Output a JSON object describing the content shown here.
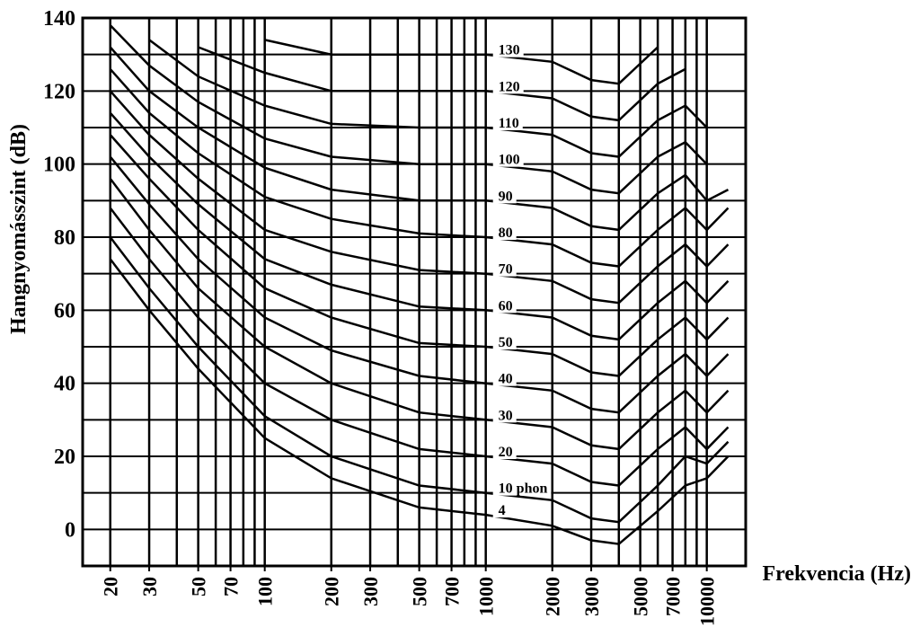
{
  "chart_data": {
    "type": "line",
    "x_label": "Frekvencia (Hz)",
    "y_label": "Hangnyomásszint (dB)",
    "log_x": true,
    "grid": true,
    "xlim": [
      15,
      15000
    ],
    "ylim": [
      -10,
      140
    ],
    "xticks": [
      20,
      30,
      50,
      70,
      100,
      200,
      300,
      500,
      700,
      1000,
      2000,
      3000,
      5000,
      7000,
      10000
    ],
    "yticks": [
      0,
      20,
      40,
      60,
      80,
      100,
      120,
      140
    ],
    "xgrid": [
      20,
      30,
      40,
      50,
      60,
      70,
      80,
      90,
      100,
      200,
      300,
      400,
      500,
      600,
      700,
      800,
      900,
      1000,
      2000,
      3000,
      4000,
      5000,
      6000,
      7000,
      8000,
      9000,
      10000
    ],
    "ygrid": [
      -10,
      0,
      10,
      20,
      30,
      40,
      50,
      60,
      70,
      80,
      90,
      100,
      110,
      120,
      130,
      140
    ],
    "x": [
      20,
      30,
      50,
      100,
      200,
      500,
      1000,
      2000,
      3000,
      4000,
      6000,
      8000,
      10000,
      12500
    ],
    "series": [
      {
        "name": "130",
        "color": "#000000",
        "values": [
          null,
          null,
          null,
          134,
          130,
          130,
          130,
          128,
          123,
          122,
          132,
          null,
          null,
          null
        ]
      },
      {
        "name": "120",
        "color": "#000000",
        "values": [
          null,
          null,
          132,
          125,
          120,
          120,
          120,
          118,
          113,
          112,
          122,
          126,
          null,
          null
        ]
      },
      {
        "name": "110",
        "color": "#000000",
        "values": [
          null,
          134,
          124,
          116,
          111,
          110,
          110,
          108,
          103,
          102,
          112,
          116,
          110,
          null
        ]
      },
      {
        "name": "100",
        "color": "#000000",
        "values": [
          138,
          127,
          117,
          107,
          102,
          100,
          100,
          98,
          93,
          92,
          102,
          106,
          100,
          null
        ]
      },
      {
        "name": "90",
        "color": "#000000",
        "values": [
          132,
          120,
          110,
          99,
          93,
          90,
          90,
          88,
          83,
          82,
          92,
          97,
          90,
          93
        ]
      },
      {
        "name": "80",
        "color": "#000000",
        "values": [
          126,
          114,
          103,
          91,
          85,
          81,
          80,
          78,
          73,
          72,
          82,
          88,
          82,
          88
        ]
      },
      {
        "name": "70",
        "color": "#000000",
        "values": [
          120,
          108,
          96,
          82,
          76,
          71,
          70,
          68,
          63,
          62,
          72,
          78,
          72,
          78
        ]
      },
      {
        "name": "60",
        "color": "#000000",
        "values": [
          114,
          102,
          89,
          74,
          67,
          61,
          60,
          58,
          53,
          52,
          62,
          68,
          62,
          68
        ]
      },
      {
        "name": "50",
        "color": "#000000",
        "values": [
          108,
          96,
          82,
          66,
          58,
          51,
          50,
          48,
          43,
          42,
          52,
          58,
          52,
          58
        ]
      },
      {
        "name": "40",
        "color": "#000000",
        "values": [
          102,
          89,
          74,
          58,
          49,
          42,
          40,
          38,
          33,
          32,
          42,
          48,
          42,
          48
        ]
      },
      {
        "name": "30",
        "color": "#000000",
        "values": [
          96,
          82,
          66,
          50,
          40,
          32,
          30,
          28,
          23,
          22,
          32,
          38,
          32,
          38
        ]
      },
      {
        "name": "20",
        "color": "#000000",
        "values": [
          88,
          74,
          58,
          40,
          30,
          22,
          20,
          18,
          13,
          12,
          22,
          28,
          22,
          28
        ]
      },
      {
        "name": "10 phon",
        "color": "#000000",
        "values": [
          80,
          66,
          50,
          31,
          20,
          12,
          10,
          8,
          3,
          2,
          12,
          20,
          18,
          24
        ]
      },
      {
        "name": "4",
        "color": "#000000",
        "values": [
          74,
          60,
          44,
          25,
          14,
          6,
          4,
          1,
          -3,
          -4,
          5,
          12,
          14,
          20
        ]
      }
    ]
  }
}
